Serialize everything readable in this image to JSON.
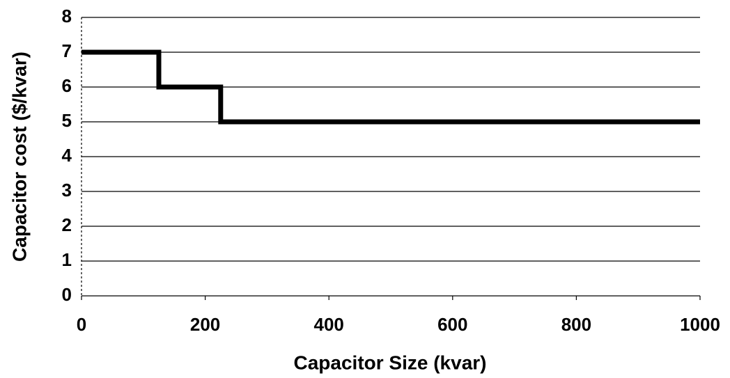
{
  "chart_data": {
    "type": "line",
    "x_label": "Capacitor Size (kvar)",
    "y_label": "Capacitor cost ($/kvar)",
    "x": [
      0,
      125,
      125,
      225,
      225,
      1000
    ],
    "values": [
      7,
      7,
      6,
      6,
      5,
      5
    ],
    "color": "#000000",
    "xlim": [
      0,
      1000
    ],
    "xticks": [
      0,
      200,
      400,
      600,
      800,
      1000
    ],
    "ylim": [
      0,
      8
    ],
    "yticks": [
      0,
      1,
      2,
      3,
      4,
      5,
      6,
      7,
      8
    ],
    "grid": true
  }
}
